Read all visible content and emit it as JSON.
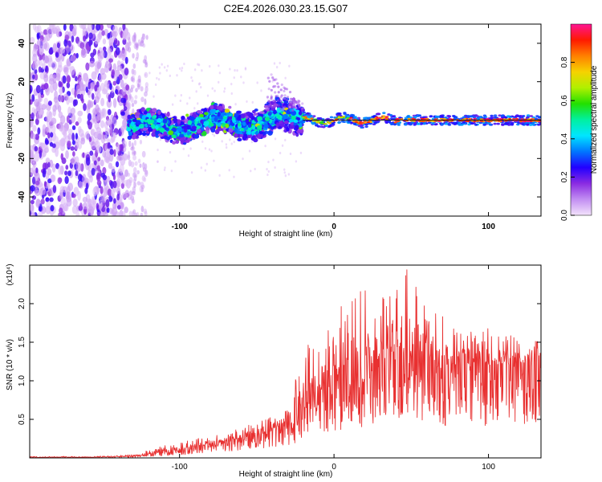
{
  "title": "C2E4.2026.030.23.15.G07",
  "colors": {
    "line": "#e83030",
    "axis": "#000000",
    "baseline": "#1a1a1a",
    "colorbar_stops": [
      "#f3e3fb",
      "#c28ef2",
      "#8a2be2",
      "#2200ff",
      "#0077ff",
      "#00e6ff",
      "#00f0a0",
      "#22e000",
      "#b0f000",
      "#f6d200",
      "#ff8000",
      "#ff1a00",
      "#ff1493"
    ]
  },
  "colorbar": {
    "label": "Normalized spectral amplitude",
    "ticks": [
      "0.0",
      "0.2",
      "0.4",
      "0.6",
      "0.8"
    ],
    "range": [
      0,
      1
    ]
  },
  "chart_data": [
    {
      "type": "heatmap",
      "title": "C2E4.2026.030.23.15.G07",
      "xlabel": "Height of straight line (km)",
      "ylabel": "Frequency (Hz)",
      "xlim": [
        -197,
        134
      ],
      "ylim": [
        -50,
        50
      ],
      "xticks": [
        "-100",
        "0",
        "100"
      ],
      "yticks": [
        "40",
        "20",
        "0",
        "-20",
        "-40"
      ],
      "grid": false,
      "regions": [
        {
          "x": [
            -197,
            -133
          ],
          "freq_hz": [
            -50,
            50
          ],
          "amplitude": 0.15,
          "note": "broadband scattered noise"
        },
        {
          "x": [
            -133,
            -125
          ],
          "freq_hz": [
            -50,
            45
          ],
          "amplitude": 0.05,
          "note": "faint scatter"
        },
        {
          "x": [
            -133,
            -20
          ],
          "freq_hz": [
            -12,
            14
          ],
          "amplitude": 0.3,
          "note": "spread band around 0 Hz"
        },
        {
          "x": [
            -20,
            134
          ],
          "freq_hz": [
            -3,
            3
          ],
          "amplitude": 0.95,
          "note": "narrow carrier line near 0 Hz"
        }
      ]
    },
    {
      "type": "line",
      "xlabel": "Height of straight line (km)",
      "ylabel": "SNR (10 * v/v)",
      "y_multiplier": "(x10⁴)",
      "xlim": [
        -197,
        134
      ],
      "ylim": [
        0,
        2.5
      ],
      "xticks": [
        "-100",
        "0",
        "100"
      ],
      "yticks": [
        "2.0",
        "1.5",
        "1.0",
        "0.5"
      ],
      "grid": false,
      "series": [
        {
          "name": "SNR",
          "x": [
            -197,
            -180,
            -160,
            -140,
            -130,
            -120,
            -110,
            -100,
            -90,
            -80,
            -70,
            -60,
            -50,
            -40,
            -30,
            -20,
            -10,
            0,
            10,
            20,
            30,
            40,
            50,
            60,
            70,
            80,
            90,
            100,
            110,
            120,
            130,
            134
          ],
          "values": [
            0.01,
            0.01,
            0.01,
            0.015,
            0.02,
            0.05,
            0.08,
            0.11,
            0.14,
            0.18,
            0.21,
            0.25,
            0.3,
            0.34,
            0.45,
            0.6,
            0.85,
            1.0,
            1.1,
            1.15,
            1.3,
            1.35,
            1.32,
            1.25,
            1.15,
            1.2,
            1.18,
            1.2,
            1.2,
            1.15,
            1.3,
            1.3
          ],
          "peak_values": [
            0.02,
            0.02,
            0.02,
            0.03,
            0.05,
            0.1,
            0.16,
            0.2,
            0.25,
            0.28,
            0.32,
            0.4,
            0.45,
            0.55,
            0.68,
            1.6,
            1.4,
            1.85,
            2.3,
            2.2,
            2.0,
            2.5,
            2.5,
            2.0,
            1.85,
            1.65,
            1.65,
            1.68,
            1.6,
            1.6,
            1.6,
            1.5
          ]
        }
      ]
    }
  ]
}
